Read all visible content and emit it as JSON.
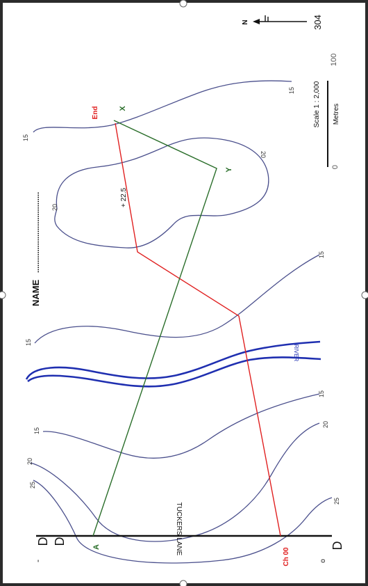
{
  "sheet_number": "304",
  "name_label": "NAME",
  "name_dots": "......................................",
  "north_label": "N",
  "scale": {
    "text": "Scale 1 : 2,000",
    "unit": "Metres",
    "start": "0",
    "end": "100"
  },
  "road_label": "TUCKERS LANE",
  "river_label": "RIVER",
  "red_line": {
    "start_label": "Ch 00",
    "end_label": "End",
    "color": "#e02020"
  },
  "green_line": {
    "start_label": "A",
    "mid_label": "Y",
    "end_label": "X",
    "color": "#2a6e2a"
  },
  "offset_label": "+ 22.5",
  "contour_labels": [
    "15",
    "15",
    "15",
    "15",
    "15",
    "15",
    "20",
    "20",
    "20",
    "20",
    "25",
    "25"
  ],
  "symbols": {
    "top_left": "D",
    "top_left_mark": "-",
    "bottom_left": "D",
    "bottom_left_mark": "o"
  }
}
